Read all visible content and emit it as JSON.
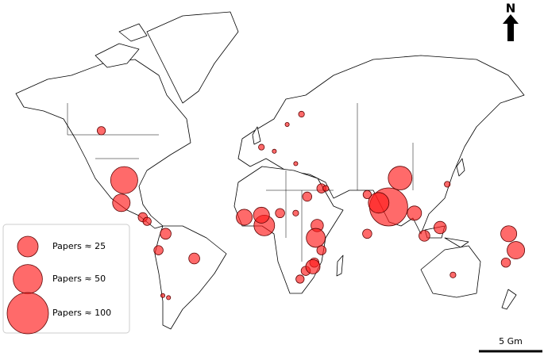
{
  "chart_data": {
    "type": "bubble_map",
    "color": "#ff1a1a",
    "points": [
      {
        "lon": -118,
        "lat": 52,
        "papers": 4
      },
      {
        "lon": -102,
        "lat": 28,
        "papers": 43
      },
      {
        "lon": -104,
        "lat": 17,
        "papers": 18
      },
      {
        "lon": -89,
        "lat": 10,
        "papers": 5
      },
      {
        "lon": -86,
        "lat": 8,
        "papers": 4
      },
      {
        "lon": -73,
        "lat": 2,
        "papers": 7
      },
      {
        "lon": -78,
        "lat": -6,
        "papers": 5
      },
      {
        "lon": -53,
        "lat": -10,
        "papers": 7
      },
      {
        "lon": -75,
        "lat": -28,
        "papers": 1
      },
      {
        "lon": -71,
        "lat": -29,
        "papers": 1
      },
      {
        "lon": -18,
        "lat": 10,
        "papers": 15
      },
      {
        "lon": -4,
        "lat": 6,
        "papers": 25
      },
      {
        "lon": -6,
        "lat": 11,
        "papers": 15
      },
      {
        "lon": 7,
        "lat": 12,
        "papers": 5
      },
      {
        "lon": 18,
        "lat": 12,
        "papers": 2
      },
      {
        "lon": 26,
        "lat": 20,
        "papers": 5
      },
      {
        "lon": 33,
        "lat": 6,
        "papers": 9
      },
      {
        "lon": 32,
        "lat": 0,
        "papers": 21
      },
      {
        "lon": 36,
        "lat": -6,
        "papers": 5
      },
      {
        "lon": 31,
        "lat": -12,
        "papers": 5
      },
      {
        "lon": 25,
        "lat": -16,
        "papers": 5
      },
      {
        "lon": 21,
        "lat": -20,
        "papers": 4
      },
      {
        "lon": 30,
        "lat": -14,
        "papers": 12
      },
      {
        "lon": 12,
        "lat": 55,
        "papers": 1
      },
      {
        "lon": -6,
        "lat": 44,
        "papers": 2
      },
      {
        "lon": 3,
        "lat": 42,
        "papers": 1
      },
      {
        "lon": 18,
        "lat": 36,
        "papers": 1
      },
      {
        "lon": 36,
        "lat": 24,
        "papers": 5
      },
      {
        "lon": 68,
        "lat": 21,
        "papers": 4
      },
      {
        "lon": 91,
        "lat": 29,
        "papers": 33
      },
      {
        "lon": 83,
        "lat": 15,
        "papers": 85
      },
      {
        "lon": 76,
        "lat": 17,
        "papers": 25
      },
      {
        "lon": 101,
        "lat": 12,
        "papers": 12
      },
      {
        "lon": 68,
        "lat": 2,
        "papers": 5
      },
      {
        "lon": 108,
        "lat": 1,
        "papers": 7
      },
      {
        "lon": 119,
        "lat": 5,
        "papers": 9
      },
      {
        "lon": 167,
        "lat": 2,
        "papers": 15
      },
      {
        "lon": 172,
        "lat": -6,
        "papers": 18
      },
      {
        "lon": 165,
        "lat": -12,
        "papers": 5
      },
      {
        "lon": 128,
        "lat": -18,
        "papers": 2
      },
      {
        "lon": 124,
        "lat": 26,
        "papers": 2
      },
      {
        "lon": 22,
        "lat": 60,
        "papers": 2
      },
      {
        "lon": 39,
        "lat": 24,
        "papers": 2
      }
    ],
    "legend": [
      {
        "value": 25,
        "label": "Papers ≈ 25"
      },
      {
        "value": 50,
        "label": "Papers ≈ 50"
      },
      {
        "value": 100,
        "label": "Papers ≈ 100"
      }
    ],
    "scale_bar": "5 Gm",
    "north": "N"
  }
}
